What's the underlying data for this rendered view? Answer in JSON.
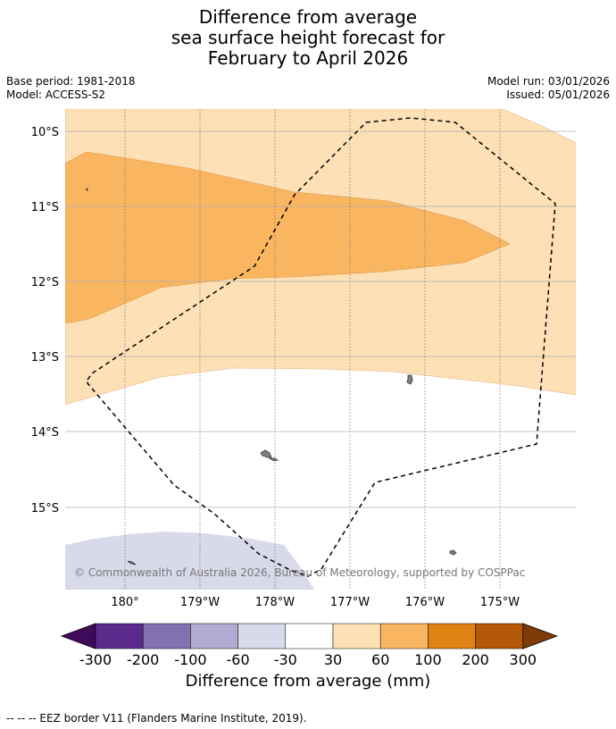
{
  "header": {
    "title_line1": "Difference from average",
    "title_line2": "sea surface height forecast for",
    "title_line3": "February to April 2026",
    "base_period": "Base period: 1981-2018",
    "model": "Model: ACCESS-S2",
    "model_run": "Model run: 03/01/2026",
    "issued": "Issued: 05/01/2026"
  },
  "map": {
    "lat_labels": [
      "10°S",
      "11°S",
      "12°S",
      "13°S",
      "14°S",
      "15°S"
    ],
    "lon_labels": [
      "180°",
      "179°W",
      "178°W",
      "177°W",
      "176°W",
      "175°W"
    ],
    "copyright": "© Commonwealth of Australia 2026, Bureau of Meteorology, supported by COSPPac",
    "colors": {
      "band_30_60": "#fde0b6",
      "band_60_100": "#fab560",
      "band_neg30_neg60": "#d8d9ea",
      "land": "#808080",
      "eez": "#000000"
    }
  },
  "colorbar": {
    "title": "Difference from average (mm)",
    "tick_labels": [
      "-300",
      "-200",
      "-100",
      "-60",
      "-30",
      "30",
      "60",
      "100",
      "200",
      "300"
    ],
    "colors": [
      "#3f0a5a",
      "#5b2a8c",
      "#8272b0",
      "#b3aad3",
      "#d8d9ea",
      "#ffffff",
      "#fde0b6",
      "#fab560",
      "#e08214",
      "#b35806",
      "#7f3b08"
    ]
  },
  "footnote": "--  --  -- EEZ border V11 (Flanders Marine Institute, 2019)."
}
